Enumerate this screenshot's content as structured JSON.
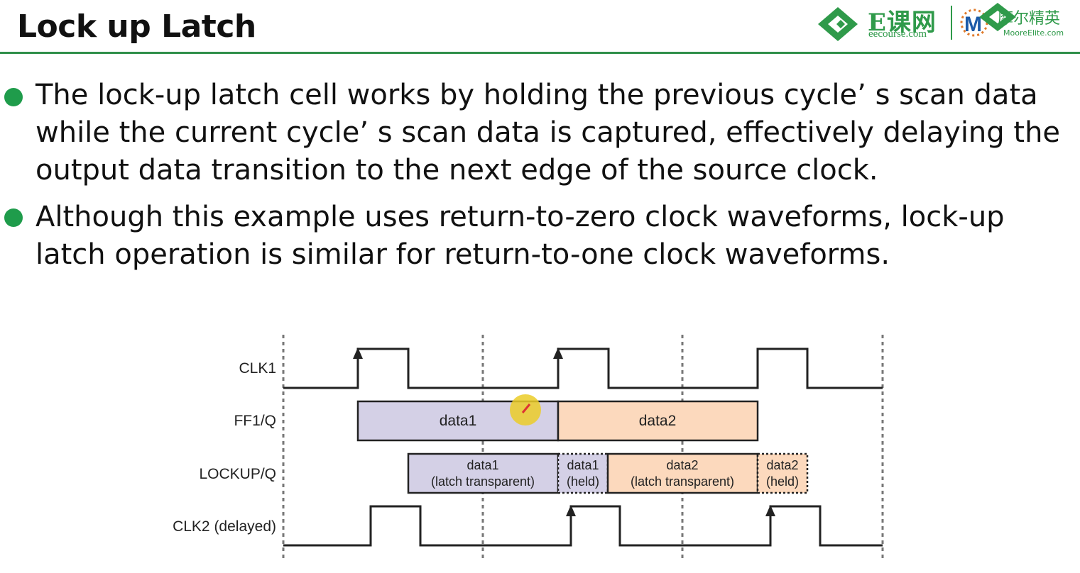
{
  "slide": {
    "title": "Lock up Latch"
  },
  "logo": {
    "main": "E课网",
    "sub": "eecourse.com",
    "partner": "摩尔精英",
    "partner_sub": "MooreElite.com",
    "icon": "diamond-logo-icon"
  },
  "bullets": [
    {
      "lines": [
        "The lock-up latch cell works by holding the previous cycle’ s scan data",
        "while the current cycle’ s scan data is captured, effectively delaying the",
        "output data transition to the next edge of the source clock."
      ]
    },
    {
      "lines": [
        "Although this example uses return-to-zero clock waveforms, lock-up",
        "latch operation is similar for return-to-one clock waveforms."
      ]
    }
  ],
  "diagram": {
    "signals": [
      {
        "name": "CLK1"
      },
      {
        "name": "FF1/Q"
      },
      {
        "name": "LOCKUP/Q"
      },
      {
        "name": "CLK2 (delayed)"
      }
    ],
    "ff1_boxes": [
      {
        "label": "data1",
        "color": "#d4d0e6"
      },
      {
        "label": "data2",
        "color": "#fcd9bd"
      }
    ],
    "lockup_boxes": [
      {
        "line1": "data1",
        "line2": "(latch transparent)",
        "color": "#d4d0e6",
        "dashed": false
      },
      {
        "line1": "data1",
        "line2": "(held)",
        "color": "#d4d0e6",
        "dashed": true
      },
      {
        "line1": "data2",
        "line2": "(latch transparent)",
        "color": "#fcd9bd",
        "dashed": false
      },
      {
        "line1": "data2",
        "line2": "(held)",
        "color": "#fcd9bd",
        "dashed": true
      }
    ]
  },
  "colors": {
    "accent_green": "#1f9c4b",
    "rule_green": "#2f8f4a",
    "data1_fill": "#d4d0e6",
    "data2_fill": "#fcd9bd"
  }
}
